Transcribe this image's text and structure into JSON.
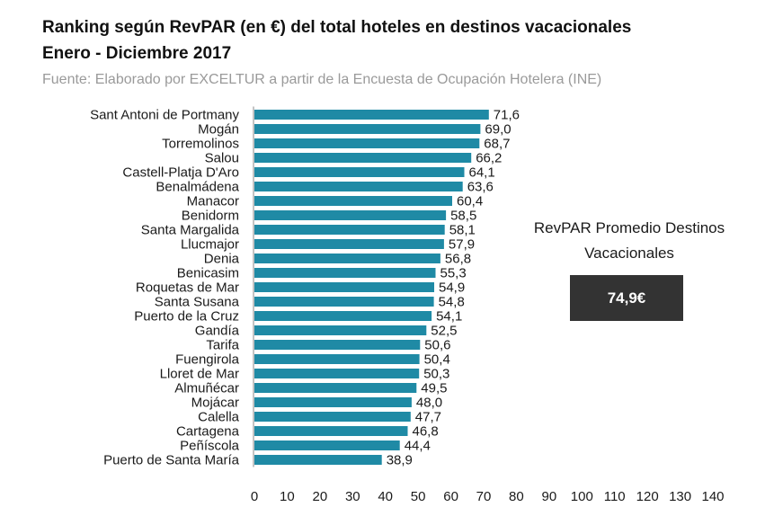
{
  "header": {
    "title_line1": "Ranking según RevPAR (en €) del total hoteles en destinos vacacionales",
    "title_line2": "Enero - Diciembre 2017",
    "source": "Fuente: Elaborado por EXCELTUR a partir de la Encuesta de Ocupación Hotelera (INE)"
  },
  "average": {
    "title": "RevPAR Promedio Destinos Vacacionales",
    "value": "74,9€"
  },
  "colors": {
    "bar": "#1f8aa5",
    "avg_box": "#333333"
  },
  "chart_data": {
    "type": "bar",
    "orientation": "horizontal",
    "categories": [
      "Sant Antoni de Portmany",
      "Mogán",
      "Torremolinos",
      "Salou",
      "Castell-Platja D'Aro",
      "Benalmádena",
      "Manacor",
      "Benidorm",
      "Santa Margalida",
      "Llucmajor",
      "Denia",
      "Benicasim",
      "Roquetas de Mar",
      "Santa Susana",
      "Puerto de la Cruz",
      "Gandía",
      "Tarifa",
      "Fuengirola",
      "Lloret de Mar",
      "Almuñécar",
      "Mojácar",
      "Calella",
      "Cartagena",
      "Peñíscola",
      "Puerto de Santa María"
    ],
    "values": [
      71.6,
      69.0,
      68.7,
      66.2,
      64.1,
      63.6,
      60.4,
      58.5,
      58.1,
      57.9,
      56.8,
      55.3,
      54.9,
      54.8,
      54.1,
      52.5,
      50.6,
      50.4,
      50.3,
      49.5,
      48.0,
      47.7,
      46.8,
      44.4,
      38.9
    ],
    "value_labels": [
      "71,6",
      "69,0",
      "68,7",
      "66,2",
      "64,1",
      "63,6",
      "60,4",
      "58,5",
      "58,1",
      "57,9",
      "56,8",
      "55,3",
      "54,9",
      "54,8",
      "54,1",
      "52,5",
      "50,6",
      "50,4",
      "50,3",
      "49,5",
      "48,0",
      "47,7",
      "46,8",
      "44,4",
      "38,9"
    ],
    "xlim": [
      0,
      140
    ],
    "xticks": [
      0,
      10,
      20,
      30,
      40,
      50,
      60,
      70,
      80,
      90,
      100,
      110,
      120,
      130,
      140
    ],
    "grid": false,
    "legend": "none"
  }
}
